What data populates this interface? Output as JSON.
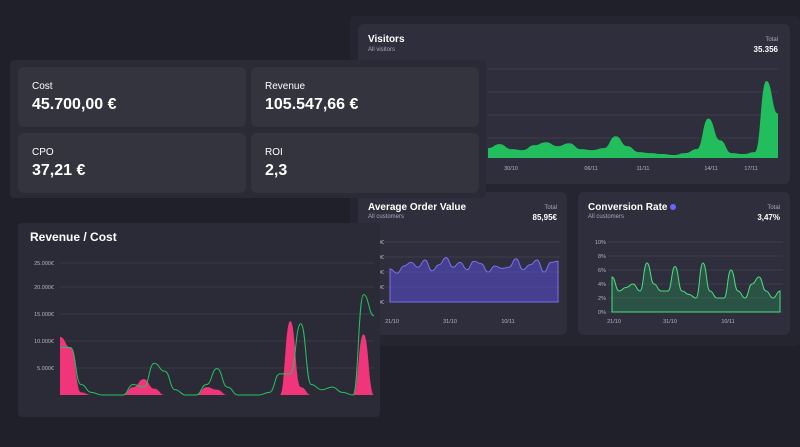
{
  "visitors": {
    "title": "Visitors",
    "subtitle": "All visitors",
    "total_label": "Total",
    "total_value": "35.356",
    "color": "#22c55e",
    "x_ticks": [
      "30/10",
      "06/11",
      "11/11",
      "14/11",
      "17/11"
    ]
  },
  "aov": {
    "title": "Average Order Value",
    "subtitle": "All customers",
    "total_label": "Total",
    "total_value": "85,95€",
    "color": "#5b4fd6",
    "y_ticks": [
      "0€",
      "0€",
      "0€",
      "0€",
      "0€"
    ],
    "x_ticks": [
      "21/10",
      "31/10",
      "10/11"
    ]
  },
  "conversion": {
    "title": "Conversion Rate",
    "info_icon": "info-dot-icon",
    "subtitle": "All customers",
    "total_label": "Total",
    "total_value": "3,47%",
    "color": "#22c55e",
    "y_ticks": [
      "10%",
      "8%",
      "6%",
      "4%",
      "2%",
      "0%"
    ],
    "x_ticks": [
      "21/10",
      "31/10",
      "10/11"
    ]
  },
  "kpis": [
    {
      "label": "Cost",
      "value": "45.700,00 €"
    },
    {
      "label": "Revenue",
      "value": "105.547,66 €"
    },
    {
      "label": "CPO",
      "value": "37,21 €"
    },
    {
      "label": "ROI",
      "value": "2,3"
    }
  ],
  "revenue_cost": {
    "title": "Revenue / Cost",
    "y_ticks": [
      "25.000€",
      "20.000€",
      "15.000€",
      "10.000€",
      "5.000€"
    ],
    "revenue_color": "#f0357a",
    "cost_color": "#22c55e"
  },
  "chart_data": [
    {
      "type": "area",
      "title": "Visitors",
      "x_ticks": [
        "30/10",
        "06/11",
        "11/11",
        "14/11",
        "17/11"
      ],
      "series": [
        {
          "values": [
            10,
            14,
            9,
            8,
            13,
            16,
            12,
            15,
            9,
            8,
            10,
            22,
            12,
            6,
            5,
            4,
            3,
            5,
            9,
            40,
            18,
            5,
            4,
            6,
            78,
            45
          ]
        }
      ]
    },
    {
      "type": "area",
      "title": "Average Order Value",
      "x_ticks": [
        "21/10",
        "31/10",
        "10/11"
      ],
      "series": [
        {
          "values": [
            55,
            48,
            60,
            66,
            58,
            70,
            52,
            62,
            74,
            58,
            66,
            54,
            68,
            64,
            50,
            60,
            56,
            58,
            72,
            54,
            62,
            70,
            50,
            66,
            68
          ]
        }
      ]
    },
    {
      "type": "area",
      "title": "Conversion Rate",
      "y_ticks": [
        "10%",
        "8%",
        "6%",
        "4%",
        "2%",
        "0%"
      ],
      "x_ticks": [
        "21/10",
        "31/10",
        "10/11"
      ],
      "series": [
        {
          "values": [
            5,
            3,
            3.5,
            4,
            3,
            7,
            4,
            3,
            3,
            6.5,
            3,
            2.5,
            2,
            7,
            3,
            2,
            2,
            6,
            3,
            2,
            4,
            5,
            3,
            2,
            3
          ]
        }
      ]
    },
    {
      "type": "area",
      "title": "Revenue / Cost",
      "y_ticks": [
        "25.000€",
        "20.000€",
        "15.000€",
        "10.000€",
        "5.000€"
      ],
      "series": [
        {
          "values": [
            11000,
            9000,
            500,
            0,
            0,
            0,
            0,
            1500,
            3000,
            1200,
            0,
            0,
            0,
            0,
            1500,
            1000,
            0,
            0,
            0,
            0,
            0,
            0,
            14000,
            1500,
            0,
            0,
            0,
            0,
            0,
            11500,
            0
          ]
        },
        {
          "values": [
            9000,
            9000,
            2000,
            500,
            0,
            0,
            0,
            2000,
            1500,
            6000,
            4500,
            1000,
            0,
            0,
            2000,
            5000,
            1500,
            0,
            0,
            0,
            500,
            4000,
            4000,
            13500,
            2000,
            1000,
            1500,
            500,
            0,
            19000,
            15000
          ]
        }
      ]
    }
  ]
}
